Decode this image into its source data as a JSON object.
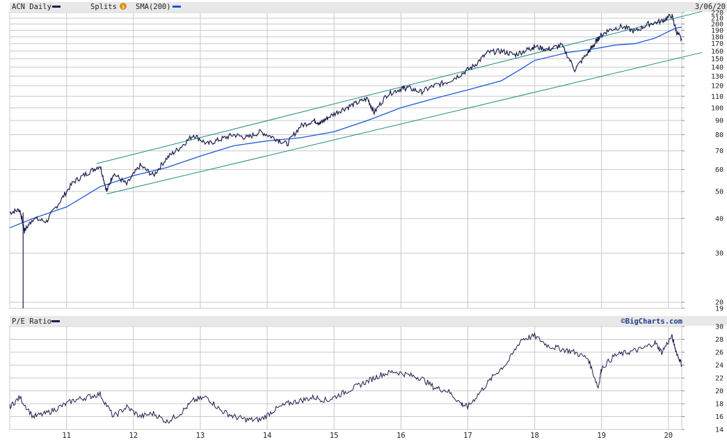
{
  "header": {
    "ticker_label": "ACN Daily",
    "splits_label": "Splits",
    "splits_icon": "splits-dollar-icon",
    "sma_label": "SMA(200)",
    "date_label": "3/06/20"
  },
  "pe_header": {
    "label": "P/E Ratio",
    "watermark": "©BigCharts.com"
  },
  "colors": {
    "price": "#1c1c4e",
    "sma": "#1a56d6",
    "channel": "#1e8a7a",
    "grid": "#c8c8c8",
    "header_bg": "#e8e8e8",
    "splits_icon": "#d98c1a"
  },
  "chart_data": [
    {
      "type": "line",
      "title": "ACN Daily",
      "scale": "log",
      "ylim": [
        19,
        220
      ],
      "xlim": [
        2010.15,
        2020.2
      ],
      "x_ticks": [
        "11",
        "12",
        "13",
        "14",
        "15",
        "16",
        "17",
        "18",
        "19",
        "20"
      ],
      "y_ticks": [
        19,
        20,
        30,
        40,
        50,
        60,
        70,
        80,
        90,
        100,
        110,
        120,
        130,
        140,
        150,
        160,
        170,
        180,
        190,
        200,
        210,
        220
      ],
      "grid": true,
      "legend": "top-left",
      "series": [
        {
          "name": "ACN Daily",
          "x": [
            2010.15,
            2010.3,
            2010.35,
            2010.37,
            2010.5,
            2010.7,
            2010.9,
            2011.1,
            2011.3,
            2011.5,
            2011.6,
            2011.7,
            2011.9,
            2012.1,
            2012.3,
            2012.5,
            2012.7,
            2012.9,
            2013.1,
            2013.3,
            2013.5,
            2013.7,
            2013.9,
            2014.1,
            2014.3,
            2014.5,
            2014.7,
            2014.8,
            2014.9,
            2015.1,
            2015.3,
            2015.5,
            2015.6,
            2015.8,
            2016.0,
            2016.1,
            2016.3,
            2016.5,
            2016.7,
            2016.9,
            2017.1,
            2017.3,
            2017.5,
            2017.7,
            2017.9,
            2018.0,
            2018.2,
            2018.4,
            2018.6,
            2018.8,
            2018.9,
            2018.97,
            2019.1,
            2019.3,
            2019.5,
            2019.7,
            2019.9,
            2020.05,
            2020.12,
            2020.2
          ],
          "y": [
            42,
            43,
            38,
            36,
            40,
            39,
            46,
            54,
            58,
            62,
            50,
            58,
            53,
            62,
            57,
            66,
            72,
            80,
            74,
            77,
            80,
            78,
            82,
            78,
            74,
            86,
            90,
            88,
            92,
            98,
            103,
            108,
            96,
            112,
            117,
            118,
            114,
            120,
            124,
            132,
            142,
            158,
            160,
            155,
            162,
            166,
            162,
            168,
            137,
            158,
            170,
            180,
            190,
            196,
            188,
            200,
            205,
            215,
            188,
            175
          ]
        },
        {
          "name": "SMA(200)",
          "x": [
            2010.15,
            2010.5,
            2011.0,
            2011.5,
            2012.0,
            2012.5,
            2013.0,
            2013.5,
            2014.0,
            2014.5,
            2015.0,
            2015.5,
            2016.0,
            2016.5,
            2017.0,
            2017.5,
            2017.8,
            2018.0,
            2018.5,
            2018.9,
            2019.2,
            2019.5,
            2019.8,
            2020.1,
            2020.2
          ],
          "y": [
            37,
            40,
            44,
            52,
            57,
            61,
            67,
            73,
            76,
            78,
            82,
            90,
            100,
            108,
            116,
            125,
            138,
            148,
            158,
            163,
            168,
            170,
            178,
            193,
            195
          ]
        },
        {
          "name": "Channel Upper",
          "x": [
            2011.45,
            2020.5
          ],
          "y": [
            63,
            222
          ]
        },
        {
          "name": "Channel Lower",
          "x": [
            2011.6,
            2020.5
          ],
          "y": [
            49,
            158
          ]
        },
        {
          "name": "Split Spike",
          "x": [
            2010.35,
            2010.35
          ],
          "y": [
            42,
            19
          ]
        }
      ]
    },
    {
      "type": "line",
      "title": "P/E Ratio",
      "ylim": [
        14,
        30
      ],
      "xlim": [
        2010.15,
        2020.2
      ],
      "x_ticks": [
        "11",
        "12",
        "13",
        "14",
        "15",
        "16",
        "17",
        "18",
        "19",
        "20"
      ],
      "y_ticks": [
        14,
        16,
        18,
        20,
        22,
        24,
        26,
        28,
        30
      ],
      "grid": true,
      "legend": "top-left",
      "series": [
        {
          "name": "P/E Ratio",
          "x": [
            2010.15,
            2010.3,
            2010.5,
            2010.7,
            2010.9,
            2011.1,
            2011.3,
            2011.5,
            2011.7,
            2011.9,
            2012.1,
            2012.3,
            2012.5,
            2012.7,
            2012.9,
            2013.1,
            2013.3,
            2013.5,
            2013.7,
            2013.9,
            2014.1,
            2014.3,
            2014.5,
            2014.7,
            2014.9,
            2015.1,
            2015.3,
            2015.5,
            2015.7,
            2015.9,
            2016.1,
            2016.3,
            2016.5,
            2016.7,
            2016.9,
            2017.0,
            2017.2,
            2017.4,
            2017.6,
            2017.8,
            2018.0,
            2018.2,
            2018.4,
            2018.6,
            2018.8,
            2018.95,
            2019.0,
            2019.2,
            2019.4,
            2019.6,
            2019.8,
            2019.9,
            2020.05,
            2020.12,
            2020.2
          ],
          "y": [
            17.5,
            19,
            16,
            16.5,
            17.5,
            18.5,
            19,
            19.5,
            16,
            17.5,
            16,
            16.5,
            15.2,
            16.5,
            18.5,
            19,
            17,
            16,
            15.5,
            15.5,
            17,
            18,
            18.5,
            19,
            18.5,
            19.5,
            20.5,
            21.5,
            22.5,
            23,
            22.5,
            22,
            20.5,
            20,
            18,
            17.5,
            20,
            22.5,
            24.5,
            28,
            28.5,
            27,
            26.5,
            26,
            25,
            20.5,
            23.5,
            25.5,
            26,
            26.5,
            27.5,
            26,
            28.5,
            26,
            24
          ]
        }
      ]
    }
  ]
}
